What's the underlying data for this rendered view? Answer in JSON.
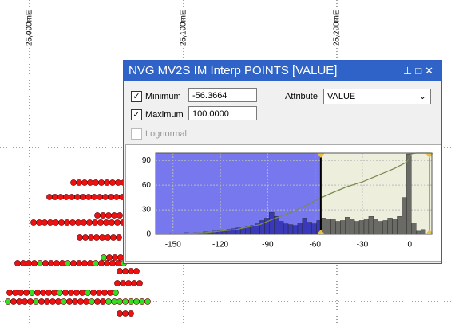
{
  "map": {
    "grid_labels": [
      "25,000mE",
      "25,100mE",
      "25,200mE"
    ]
  },
  "dialog": {
    "title": "NVG MV2S IM Interp POINTS [VALUE]",
    "minimum_label": "Minimum",
    "minimum_value": "-56.3664",
    "maximum_label": "Maximum",
    "maximum_value": "100.0000",
    "attribute_label": "Attribute",
    "attribute_value": "VALUE",
    "lognormal_label": "Lognormal"
  },
  "chart_data": {
    "type": "histogram",
    "bins": [
      -161,
      -158,
      -155,
      -152,
      -149,
      -146,
      -143,
      -140,
      -137,
      -134,
      -131,
      -128,
      -125,
      -122,
      -119,
      -116,
      -113,
      -110,
      -107,
      -104,
      -101,
      -98,
      -95,
      -92,
      -89,
      -86,
      -83,
      -80,
      -77,
      -74,
      -71,
      -68,
      -65,
      -62,
      -59,
      -56,
      -53,
      -50,
      -47,
      -44,
      -41,
      -38,
      -35,
      -32,
      -29,
      -26,
      -23,
      -20,
      -17,
      -14,
      -11,
      -8,
      -5,
      -2,
      1,
      4,
      7,
      10,
      13
    ],
    "counts": [
      0,
      0,
      0,
      1,
      1,
      1,
      2,
      1,
      2,
      2,
      3,
      3,
      4,
      5,
      4,
      6,
      7,
      8,
      7,
      10,
      11,
      13,
      17,
      20,
      27,
      22,
      16,
      13,
      12,
      11,
      14,
      20,
      15,
      13,
      17,
      20,
      18,
      19,
      16,
      17,
      21,
      18,
      16,
      17,
      19,
      22,
      18,
      16,
      17,
      20,
      18,
      22,
      45,
      98,
      14,
      4,
      6,
      0
    ],
    "cumulative": {
      "x": [
        -161,
        -130,
        -110,
        -95,
        -85,
        -75,
        -65,
        -57,
        -50,
        -40,
        -30,
        -20,
        -10,
        -5,
        -2,
        1,
        4,
        13
      ],
      "y": [
        0,
        2,
        6,
        12,
        20,
        27,
        36,
        44,
        50,
        58,
        64,
        72,
        80,
        85,
        88,
        98,
        99,
        99
      ]
    },
    "xlim": [
      -161,
      14
    ],
    "ylim": [
      0,
      99
    ],
    "xticks": [
      -150,
      -120,
      -90,
      -60,
      -30,
      0
    ],
    "yticks": [
      0,
      30,
      60,
      90
    ],
    "below_color": "#3a3ab8",
    "above_color": "#6a6a66",
    "line_color": "#7a8a50"
  }
}
